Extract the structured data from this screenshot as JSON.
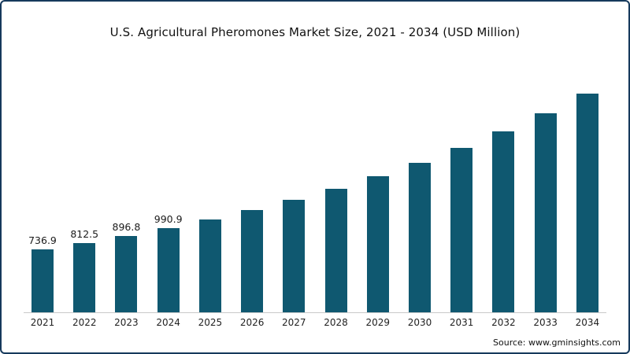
{
  "chart": {
    "title": "U.S. Agricultural Pheromones Market Size, 2021 - 2034 (USD Million)",
    "source": "Source: www.gminsights.com",
    "accent_border_color": "#16395c"
  },
  "chart_data": {
    "type": "bar",
    "title": "U.S. Agricultural Pheromones Market Size, 2021 - 2034 (USD Million)",
    "categories": [
      "2021",
      "2022",
      "2023",
      "2024",
      "2025",
      "2026",
      "2027",
      "2028",
      "2029",
      "2030",
      "2031",
      "2032",
      "2033",
      "2034"
    ],
    "values": [
      736.9,
      812.5,
      896.8,
      990.9,
      1090,
      1199,
      1319,
      1451,
      1596,
      1755,
      1931,
      2124,
      2336,
      2570
    ],
    "data_labels": [
      "736.9",
      "812.5",
      "896.8",
      "990.9",
      "",
      "",
      "",
      "",
      "",
      "",
      "",
      "",
      "",
      ""
    ],
    "xlabel": "",
    "ylabel": "",
    "ylim": [
      0,
      2700
    ],
    "grid": false,
    "legend": "none",
    "bar_color": "#0f5870",
    "axis_line_color": "#c9c9c9",
    "note": "values for 2025-2034 estimated from bar heights; only 2021-2024 carry printed data labels"
  }
}
